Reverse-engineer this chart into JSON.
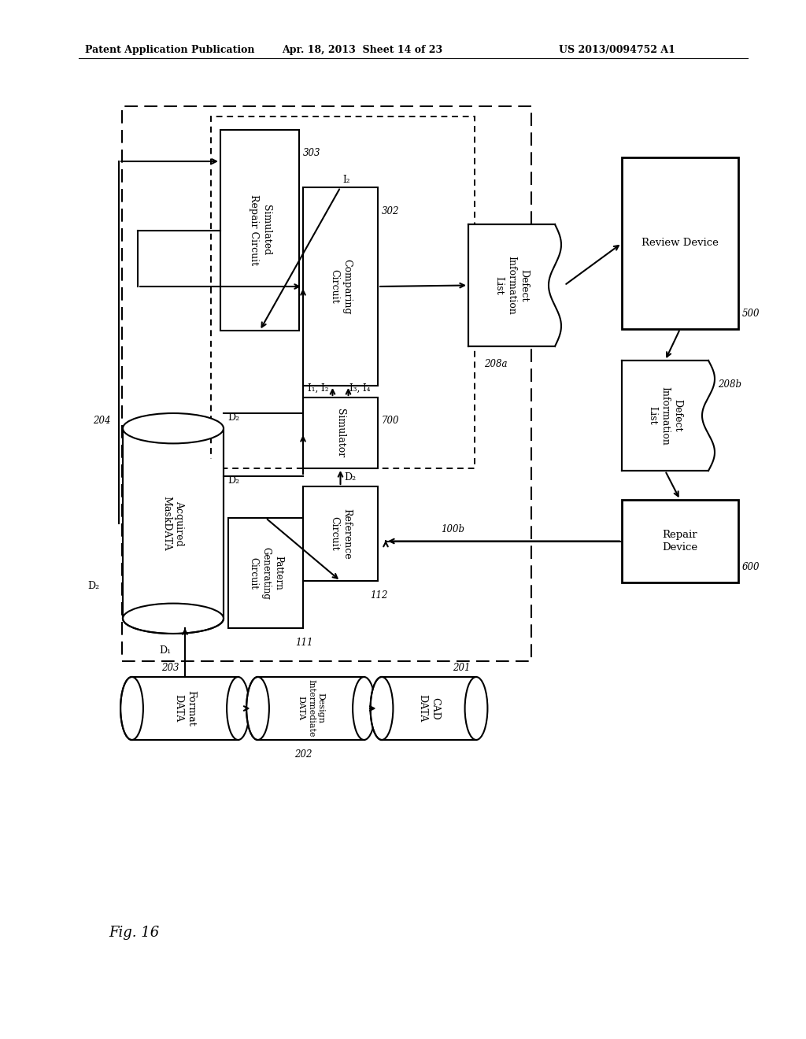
{
  "header_left": "Patent Application Publication",
  "header_mid": "Apr. 18, 2013  Sheet 14 of 23",
  "header_right": "US 2013/0094752 A1",
  "fig_label": "Fig. 16",
  "bg": "#ffffff",
  "lc": "#000000"
}
